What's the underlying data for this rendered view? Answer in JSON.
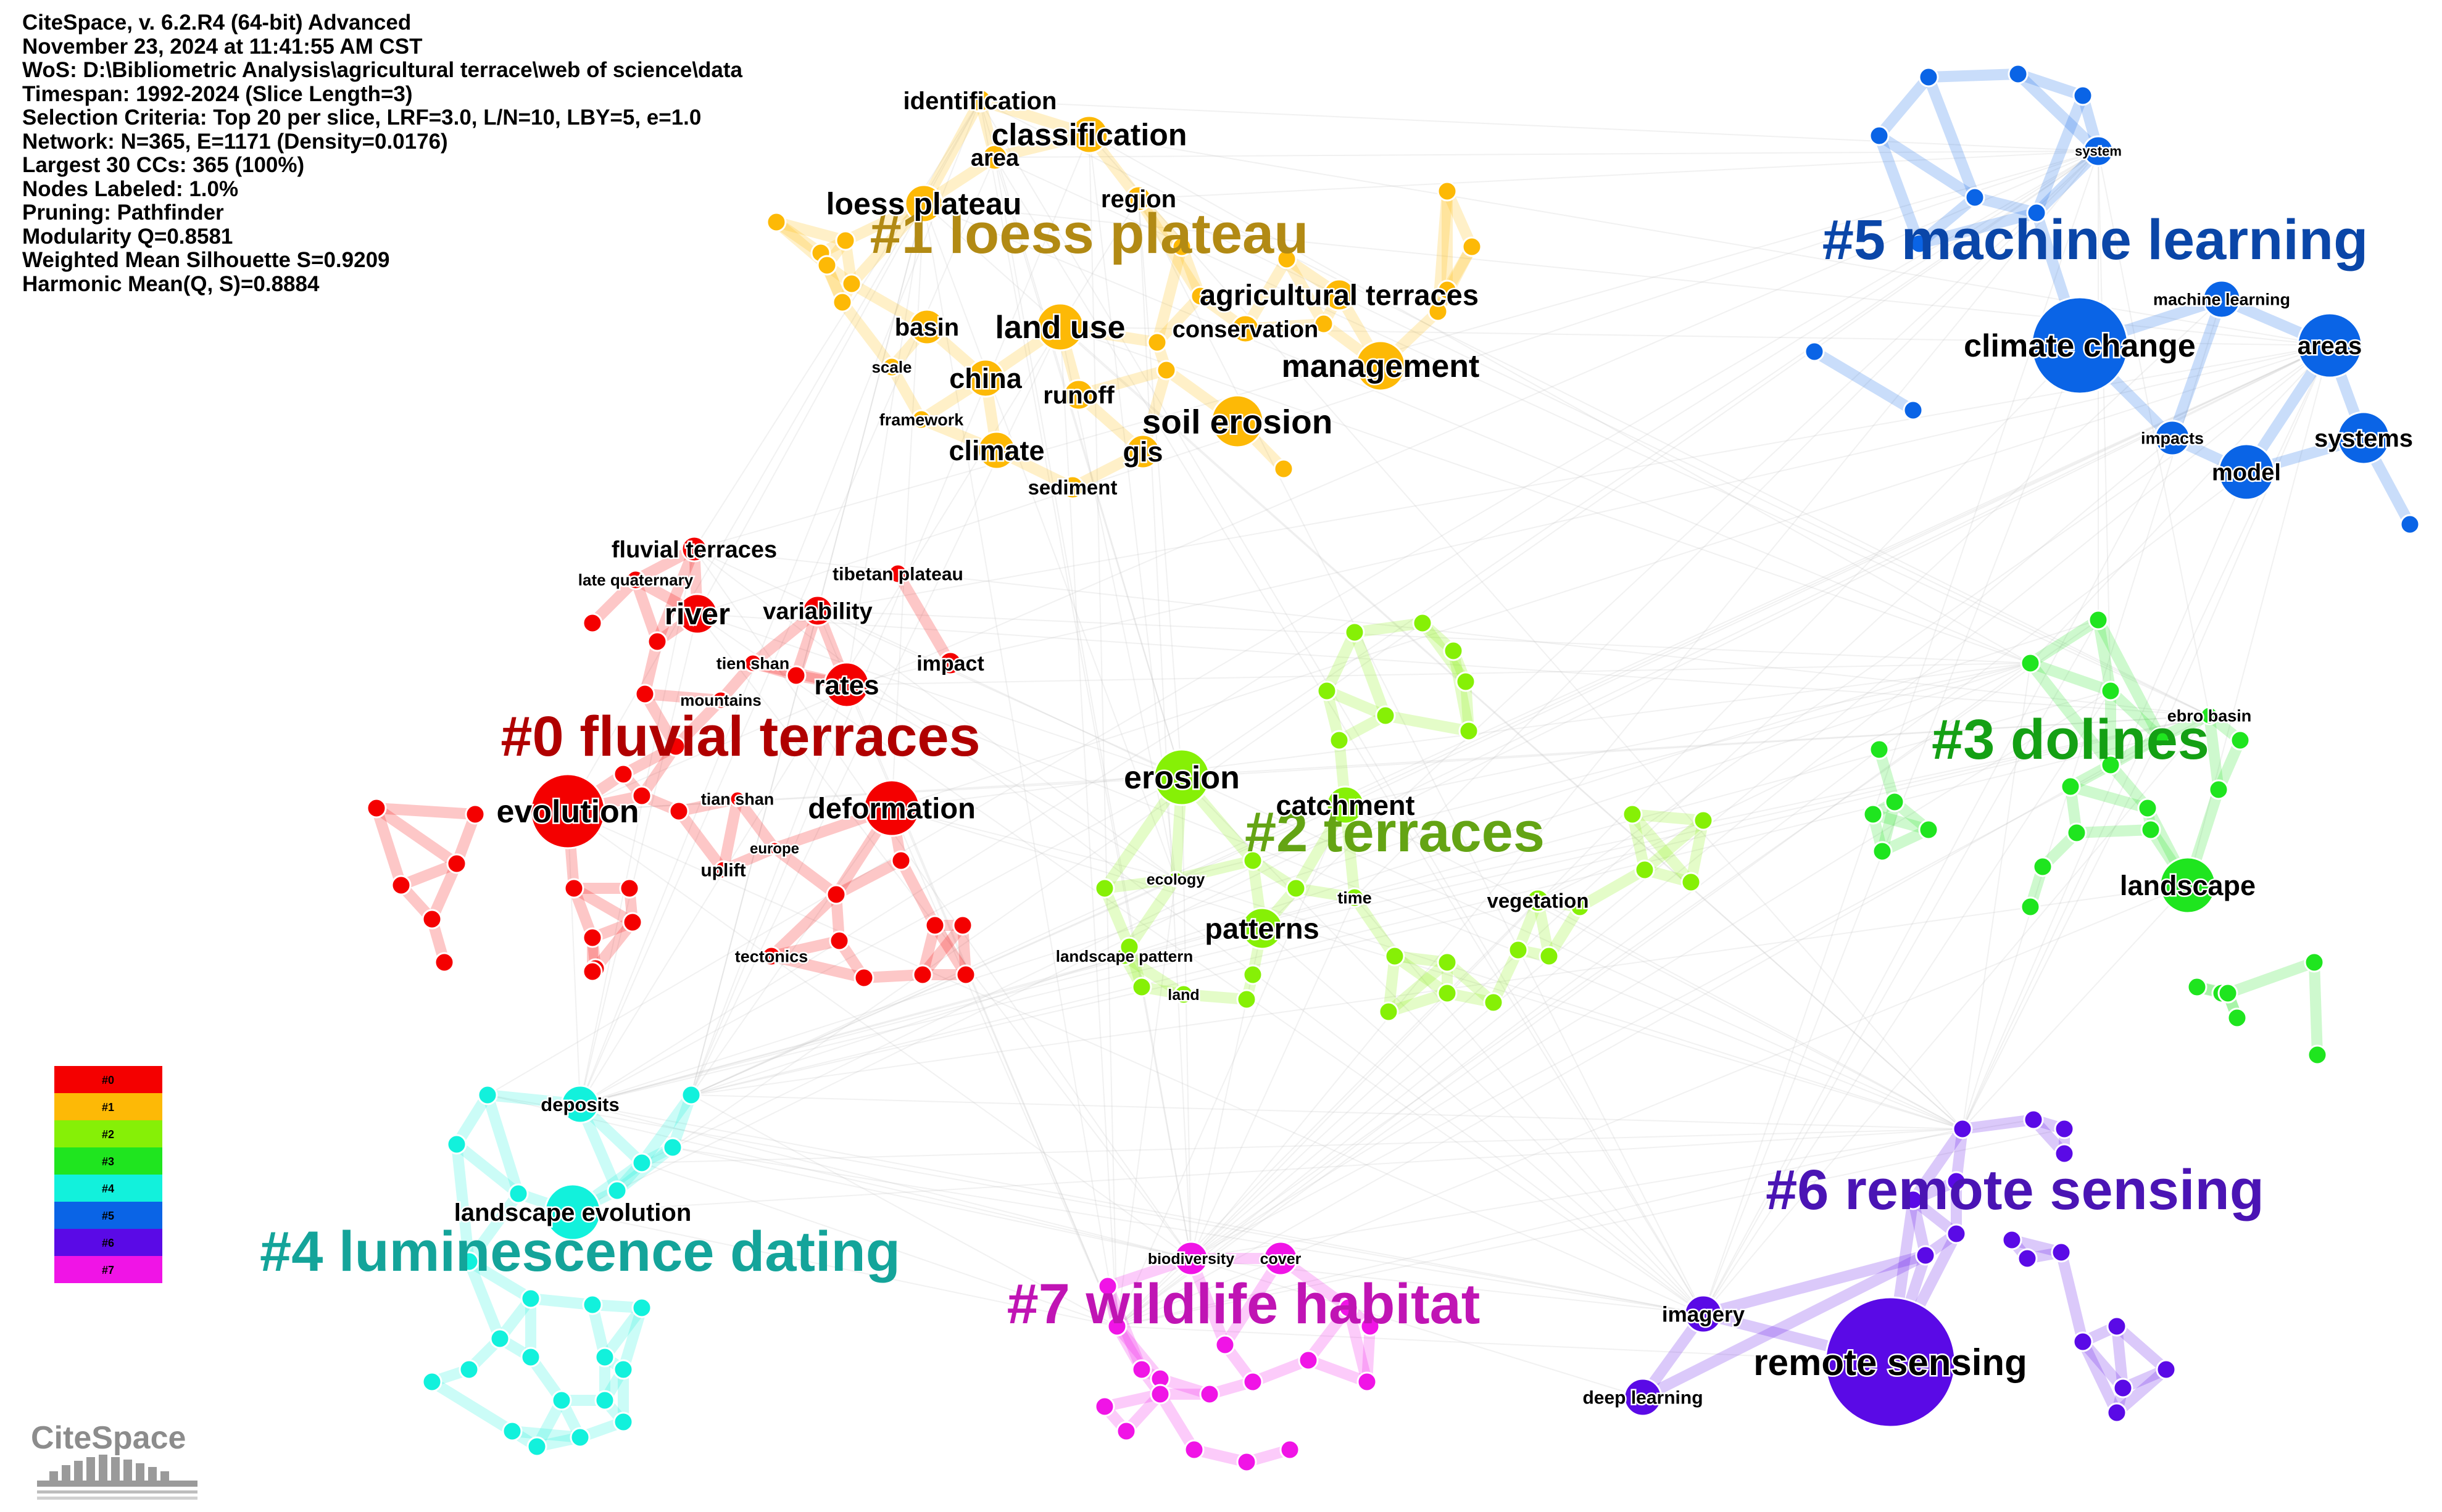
{
  "header_lines": [
    "CiteSpace, v. 6.2.R4 (64-bit) Advanced",
    "November 23, 2024 at 11:41:55 AM CST",
    "WoS: D:\\Bibliometric Analysis\\agricultural terrace\\web of science\\data",
    "Timespan: 1992-2024 (Slice Length=3)",
    "Selection Criteria: Top 20 per slice, LRF=3.0, L/N=10, LBY=5, e=1.0",
    "Network: N=365, E=1171 (Density=0.0176)",
    "Largest 30 CCs: 365 (100%)",
    "Nodes Labeled: 1.0%",
    "Pruning: Pathfinder",
    "Modularity Q=0.8581",
    "Weighted Mean Silhouette S=0.9209",
    "Harmonic Mean(Q, S)=0.8884"
  ],
  "logo_text": "CiteSpace",
  "clusters": [
    {
      "id": "#0",
      "label": "#0 fluvial terraces",
      "node_color": "#f40000",
      "label_color": "#b00000",
      "keywords": [
        "evolution",
        "deformation",
        "river",
        "rates",
        "fluvial terraces",
        "variability",
        "tibetan plateau",
        "late quaternary",
        "impact",
        "tien shan",
        "mountains",
        "tian shan",
        "europe",
        "uplift",
        "tectonics"
      ]
    },
    {
      "id": "#1",
      "label": "#1 loess plateau",
      "node_color": "#fdb906",
      "label_color": "#b28a14",
      "keywords": [
        "identification",
        "classification",
        "area",
        "loess plateau",
        "region",
        "land use",
        "basin",
        "agricultural terraces",
        "conservation",
        "management",
        "scale",
        "china",
        "runoff",
        "soil erosion",
        "framework",
        "climate",
        "gis",
        "sediment"
      ]
    },
    {
      "id": "#2",
      "label": "#2 terraces",
      "node_color": "#86f006",
      "label_color": "#64a414",
      "keywords": [
        "erosion",
        "catchment",
        "patterns",
        "ecology",
        "time",
        "vegetation",
        "landscape pattern",
        "land"
      ]
    },
    {
      "id": "#3",
      "label": "#3 dolines",
      "node_color": "#1fe51f",
      "label_color": "#14a014",
      "keywords": [
        "ebro basin",
        "landscape"
      ]
    },
    {
      "id": "#4",
      "label": "#4 luminescence dating",
      "node_color": "#12f1dc",
      "label_color": "#14a49a",
      "keywords": [
        "deposits",
        "landscape evolution"
      ]
    },
    {
      "id": "#5",
      "label": "#5 machine learning",
      "node_color": "#0a64e6",
      "label_color": "#0a46a8",
      "keywords": [
        "system",
        "machine learning",
        "climate change",
        "areas",
        "impacts",
        "model",
        "systems"
      ]
    },
    {
      "id": "#6",
      "label": "#6 remote sensing",
      "node_color": "#5a0ae6",
      "label_color": "#4a14b4",
      "keywords": [
        "imagery",
        "remote sensing",
        "deep learning"
      ]
    },
    {
      "id": "#7",
      "label": "#7 wildlife habitat",
      "node_color": "#f014e6",
      "label_color": "#c014b4",
      "keywords": [
        "biodiversity",
        "cover"
      ]
    }
  ],
  "legend": [
    "#0",
    "#1",
    "#2",
    "#3",
    "#4",
    "#5",
    "#6",
    "#7"
  ]
}
